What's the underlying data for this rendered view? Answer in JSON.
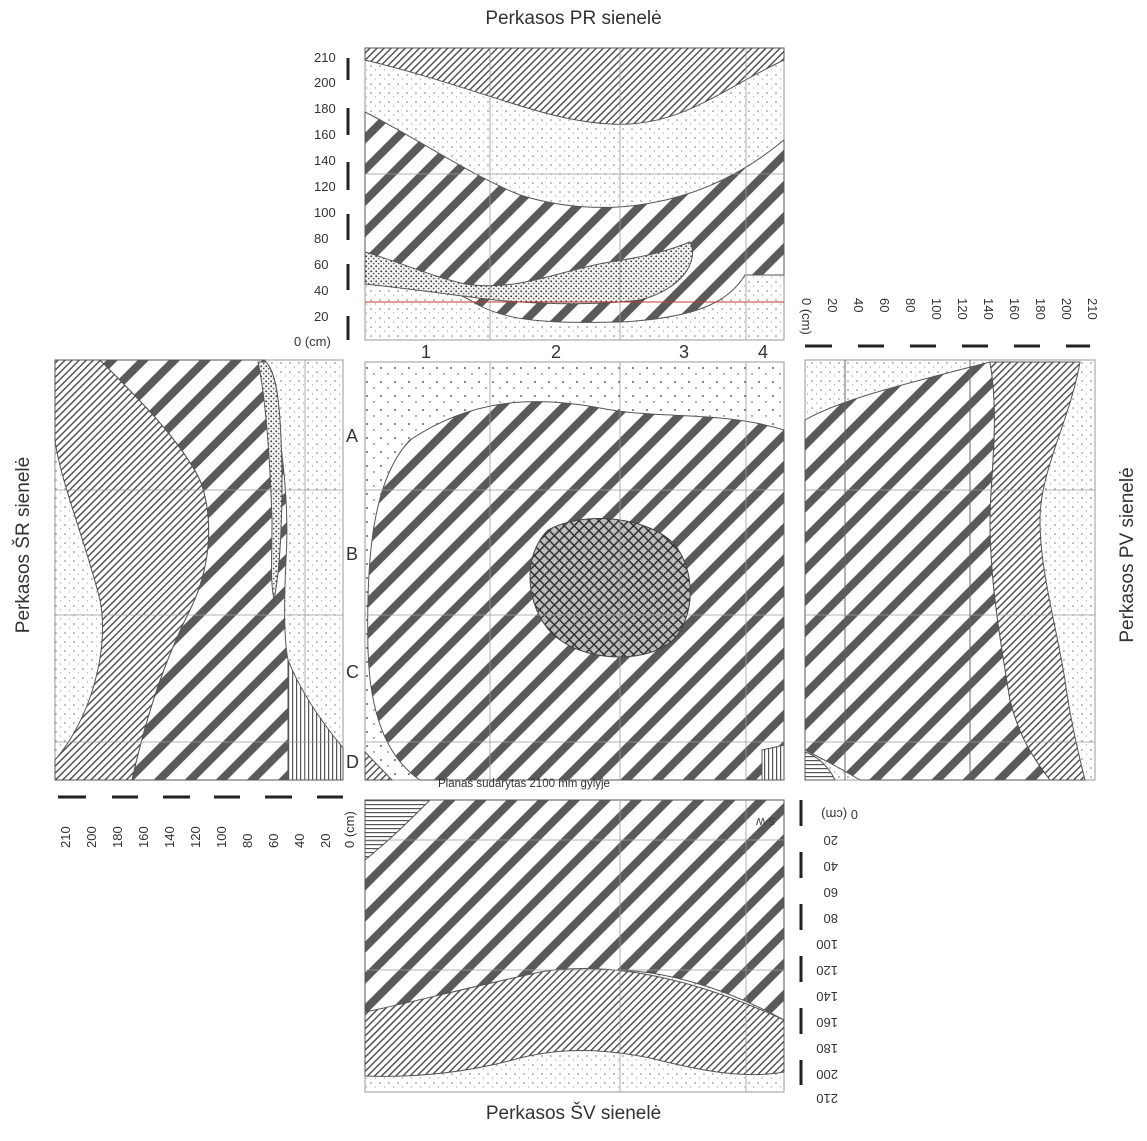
{
  "titles": {
    "top": "Perkasos PR sienelė",
    "bottom": "Perkasos ŠV sienelė",
    "left": "Perkasos ŠR sienelė",
    "right": "Perkasos PV sienelė"
  },
  "plan": {
    "columns": [
      "1",
      "2",
      "3",
      "4"
    ],
    "rows": [
      "A",
      "B",
      "C",
      "D"
    ],
    "note": "Planas sudarytas 2100 mm gylyje"
  },
  "scale": {
    "top_ticks": [
      "210",
      "200",
      "180",
      "160",
      "140",
      "120",
      "100",
      "80",
      "60",
      "40",
      "20",
      "0 (cm)"
    ],
    "side_ticks": [
      "0 (cm)",
      "20",
      "40",
      "60",
      "80",
      "100",
      "120",
      "140",
      "160",
      "180",
      "200",
      "210"
    ],
    "bottom_small_label": "S-W"
  },
  "colors": {
    "line": "#555555",
    "grid": "#9a9a9a",
    "fill_bg": "#ffffff",
    "red_line": "#c0392b",
    "green_dots": "#3a8a3a"
  }
}
